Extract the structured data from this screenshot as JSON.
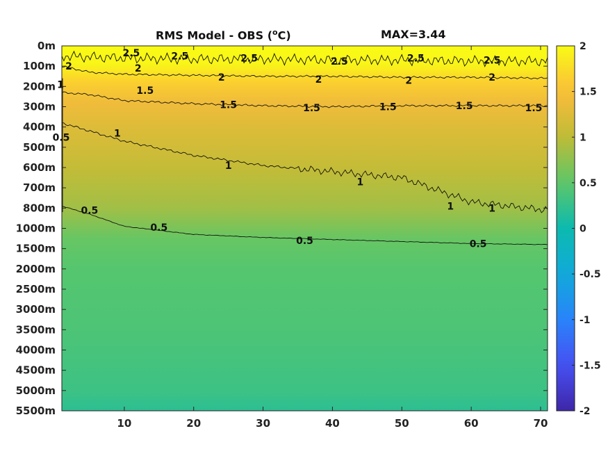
{
  "chart_data": {
    "type": "heatmap",
    "title": "RMS Model - OBS (",
    "title_unit": "C)",
    "title_degree": "o",
    "max_label": "MAX=3.44",
    "x": {
      "ticks": [
        10,
        20,
        30,
        40,
        50,
        60,
        70
      ],
      "tick_labels": [
        "10",
        "20",
        "30",
        "40",
        "50",
        "60",
        "70"
      ],
      "range": [
        1,
        71
      ]
    },
    "y": {
      "tick_labels": [
        "0m",
        "100m",
        "200m",
        "300m",
        "400m",
        "500m",
        "600m",
        "700m",
        "800m",
        "1000m",
        "1500m",
        "2000m",
        "2500m",
        "3000m",
        "3500m",
        "4000m",
        "4500m",
        "5000m",
        "5500m"
      ],
      "reversed": true
    },
    "colorbar": {
      "range": [
        -2,
        2
      ],
      "ticks": [
        2,
        1.5,
        1,
        0.5,
        0,
        -0.5,
        -1,
        -1.5,
        -2
      ],
      "tick_labels": [
        "2",
        "1.5",
        "1",
        "0.5",
        "0",
        "-0.5",
        "-1",
        "-1.5",
        "-2"
      ],
      "colormap": "parula"
    },
    "contours": [
      {
        "level": 2.5,
        "label": "2.5",
        "depth_index": [
          0.5,
          0.55,
          0.6,
          0.65,
          0.65,
          0.7,
          0.7,
          0.75,
          0.75
        ]
      },
      {
        "level": 2,
        "label": "2",
        "depth_index": [
          1.0,
          1.3,
          1.4,
          1.45,
          1.5,
          1.5,
          1.55,
          1.55,
          1.6
        ]
      },
      {
        "level": 1.5,
        "label": "1.5",
        "depth_index": [
          2.3,
          2.4,
          2.7,
          2.85,
          2.95,
          3.0,
          2.95,
          2.95,
          2.95
        ]
      },
      {
        "level": 1,
        "label": "1",
        "depth_index": [
          3.8,
          4.2,
          4.7,
          5.4,
          5.9,
          6.2,
          6.5,
          7.7,
          8.1
        ]
      },
      {
        "level": 0.5,
        "label": "0.5",
        "depth_index": [
          7.9,
          8.3,
          8.9,
          9.3,
          9.45,
          9.55,
          9.65,
          9.75,
          9.8
        ]
      }
    ],
    "contour_x": [
      1,
      5,
      10,
      20,
      30,
      40,
      50,
      60,
      71
    ],
    "contour_labels": [
      {
        "text": "2.5",
        "x": 11,
        "yi": 0.35
      },
      {
        "text": "2.5",
        "x": 18,
        "yi": 0.5
      },
      {
        "text": "2.5",
        "x": 28,
        "yi": 0.6
      },
      {
        "text": "2.5",
        "x": 41,
        "yi": 0.75
      },
      {
        "text": "2.5",
        "x": 52,
        "yi": 0.6
      },
      {
        "text": "2.5",
        "x": 63,
        "yi": 0.7
      },
      {
        "text": "2",
        "x": 2,
        "yi": 1.0
      },
      {
        "text": "2",
        "x": 12,
        "yi": 1.1
      },
      {
        "text": "2",
        "x": 24,
        "yi": 1.55
      },
      {
        "text": "2",
        "x": 38,
        "yi": 1.65
      },
      {
        "text": "2",
        "x": 51,
        "yi": 1.7
      },
      {
        "text": "2",
        "x": 63,
        "yi": 1.55
      },
      {
        "text": "1",
        "x": 0.8,
        "yi": 1.9
      },
      {
        "text": "1.5",
        "x": 13,
        "yi": 2.2
      },
      {
        "text": "1.5",
        "x": 25,
        "yi": 2.9
      },
      {
        "text": "1.5",
        "x": 37,
        "yi": 3.05
      },
      {
        "text": "1.5",
        "x": 48,
        "yi": 3.0
      },
      {
        "text": "1.5",
        "x": 59,
        "yi": 2.95
      },
      {
        "text": "1.5",
        "x": 69,
        "yi": 3.05
      },
      {
        "text": "0.5",
        "x": 0.9,
        "yi": 4.5
      },
      {
        "text": "1",
        "x": 9,
        "yi": 4.3
      },
      {
        "text": "1",
        "x": 25,
        "yi": 5.9
      },
      {
        "text": "1",
        "x": 44,
        "yi": 6.7
      },
      {
        "text": "1",
        "x": 57,
        "yi": 7.9
      },
      {
        "text": "1",
        "x": 63,
        "yi": 8.0
      },
      {
        "text": "0.5",
        "x": 5,
        "yi": 8.1
      },
      {
        "text": "0.5",
        "x": 15,
        "yi": 8.95
      },
      {
        "text": "0.5",
        "x": 36,
        "yi": 9.6
      },
      {
        "text": "0.5",
        "x": 61,
        "yi": 9.75
      }
    ],
    "field_profile": [
      {
        "yi": 0,
        "value": 2.1
      },
      {
        "yi": 0.9,
        "value": 1.95
      },
      {
        "yi": 1.8,
        "value": 1.65
      },
      {
        "yi": 2.8,
        "value": 1.4
      },
      {
        "yi": 4.0,
        "value": 1.25
      },
      {
        "yi": 6.0,
        "value": 1.05
      },
      {
        "yi": 8.0,
        "value": 0.85
      },
      {
        "yi": 9.5,
        "value": 0.55
      },
      {
        "yi": 11,
        "value": 0.45
      },
      {
        "yi": 14,
        "value": 0.4
      },
      {
        "yi": 17,
        "value": 0.3
      },
      {
        "yi": 18,
        "value": 0.2
      }
    ]
  }
}
